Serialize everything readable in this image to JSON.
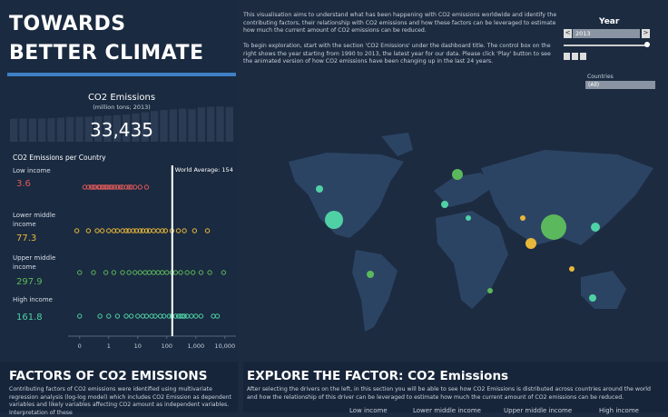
{
  "header": {
    "title_line1": "TOWARDS",
    "title_line2": "BETTER CLIMATE"
  },
  "intro": {
    "paragraph1": "This visualisation aims to understand what has been happening with CO2 emissions worldwide and identify the contributing factors, their relationship with CO2 emissions and how these factors can be leveraged to estimate how much the current amount of CO2 emissions can be reduced.",
    "paragraph2": "To begin exploration, start with the section 'CO2 Emissions' under the dashboard title. The control box on the right shows the year starting from 1990 to 2013, the latest year for our data. Please click 'Play' button to see the animated version of how CO2 emissions have been changing up in the last 24 years."
  },
  "controls": {
    "year_label": "Year",
    "year_value": "2013",
    "countries_label": "Countries",
    "countries_value": "(All)"
  },
  "chart_data": [
    {
      "type": "bar",
      "title": "CO2 Emissions",
      "subtitle": "(million tons; 2013)",
      "value": 33435,
      "value_label": "33,435",
      "categories": [
        null,
        null,
        null,
        null,
        null,
        null,
        null,
        null,
        null,
        null,
        null,
        null,
        null,
        null,
        null,
        null,
        null,
        null,
        null,
        null,
        null,
        null,
        null,
        null
      ],
      "values": [
        22150,
        22300,
        22250,
        22400,
        22700,
        23200,
        23800,
        24000,
        24100,
        24500,
        25200,
        25600,
        26100,
        27200,
        28400,
        29500,
        30500,
        31200,
        31800,
        31400,
        33000,
        33700,
        34000,
        33435
      ],
      "color": "#2b3b53",
      "ylim": [
        0,
        35000
      ]
    },
    {
      "type": "strip",
      "title": "CO2 Emissions per Country",
      "categories": [
        "Low income",
        "Lower middle income",
        "Upper middle income",
        "High income"
      ],
      "averages": [
        3.6,
        77.3,
        297.9,
        161.8
      ],
      "colors": [
        "#e05a5a",
        "#e8b83a",
        "#5cb85c",
        "#4fd1a5"
      ],
      "points": [
        [
          0.15,
          0.2,
          0.25,
          0.3,
          0.35,
          0.45,
          0.5,
          0.6,
          0.7,
          0.8,
          0.9,
          1.1,
          1.3,
          1.6,
          2,
          2.5,
          3,
          4,
          5,
          6,
          8,
          12,
          20
        ],
        [
          0.08,
          0.2,
          0.4,
          0.6,
          1,
          1.5,
          2,
          3,
          4,
          5,
          7,
          9,
          12,
          15,
          20,
          25,
          35,
          50,
          70,
          90,
          150,
          250,
          400,
          900,
          2500
        ],
        [
          0.1,
          0.3,
          0.8,
          1.5,
          3,
          5,
          8,
          12,
          18,
          25,
          35,
          50,
          70,
          100,
          150,
          200,
          300,
          500,
          800,
          1500,
          3000,
          9000
        ],
        [
          0.1,
          0.5,
          1,
          2,
          4,
          6,
          10,
          15,
          20,
          30,
          40,
          60,
          80,
          120,
          150,
          200,
          250,
          300,
          350,
          400,
          500,
          700,
          1000,
          1500,
          4000,
          5500
        ]
      ],
      "reference_line": {
        "value": 154,
        "label": "World Average: 154"
      },
      "xscale": "log",
      "xlim": [
        0.04,
        24000
      ],
      "xticks": [
        {
          "value": 0.1,
          "label": "0"
        },
        1,
        10,
        100,
        {
          "value": 1000,
          "label": "1,000"
        },
        {
          "value": 10000,
          "label": "10,000"
        }
      ]
    }
  ],
  "factors": {
    "title": "FACTORS OF CO2 EMISSIONS",
    "text": "Contributing factors of CO2 emissions were identified using multivariate regression analysis (log-log model) which includes CO2 Emission as dependent variables and likely variables affecting CO2 amount as independent variables. Interpretation of these"
  },
  "explore": {
    "title": "EXPLORE THE FACTOR: CO2 Emissions",
    "text": "After selecting the drivers on the left, in this section you will be able to see how CO2 Emissions is distributed across countries around the world and how the relationship of this driver can be leveraged to estimate how much the current amount of CO2 emissions can be reduced.",
    "columns": [
      "Low income",
      "Lower middle income",
      "Upper middle income",
      "High income"
    ]
  }
}
